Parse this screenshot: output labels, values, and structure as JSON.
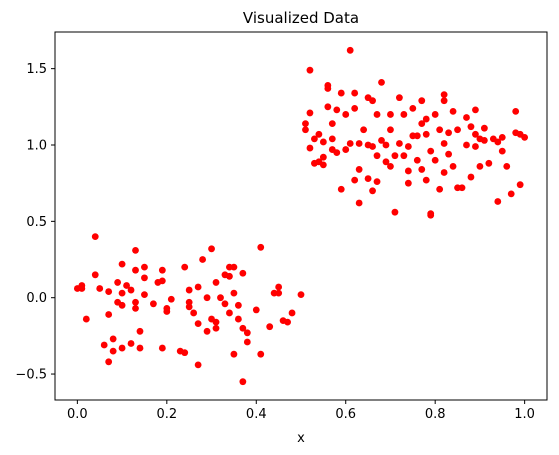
{
  "chart_data": {
    "type": "scatter",
    "title": "Visualized Data",
    "xlabel": "x",
    "ylabel": "",
    "xlim": [
      -0.05,
      1.05
    ],
    "ylim": [
      -0.67,
      1.74
    ],
    "xticks": [
      0.0,
      0.2,
      0.4,
      0.6,
      0.8,
      1.0
    ],
    "xtick_labels": [
      "0.0",
      "0.2",
      "0.4",
      "0.6",
      "0.8",
      "1.0"
    ],
    "yticks": [
      -0.5,
      0.0,
      0.5,
      1.0,
      1.5
    ],
    "ytick_labels": [
      "−0.5",
      "0.0",
      "0.5",
      "1.0",
      "1.5"
    ],
    "grid": false,
    "legend": "none",
    "marker_color": "#ff0000",
    "series": [
      {
        "points": [
          [
            0.0,
            0.06
          ],
          [
            0.01,
            0.08
          ],
          [
            0.01,
            0.06
          ],
          [
            0.02,
            -0.14
          ],
          [
            0.04,
            0.4
          ],
          [
            0.04,
            0.15
          ],
          [
            0.05,
            0.06
          ],
          [
            0.06,
            -0.31
          ],
          [
            0.07,
            0.04
          ],
          [
            0.07,
            -0.11
          ],
          [
            0.07,
            -0.42
          ],
          [
            0.08,
            -0.35
          ],
          [
            0.08,
            -0.27
          ],
          [
            0.09,
            -0.03
          ],
          [
            0.09,
            0.1
          ],
          [
            0.1,
            0.22
          ],
          [
            0.1,
            0.03
          ],
          [
            0.1,
            -0.05
          ],
          [
            0.1,
            -0.33
          ],
          [
            0.11,
            0.08
          ],
          [
            0.12,
            -0.3
          ],
          [
            0.12,
            0.05
          ],
          [
            0.13,
            -0.07
          ],
          [
            0.13,
            0.31
          ],
          [
            0.13,
            0.18
          ],
          [
            0.13,
            -0.03
          ],
          [
            0.14,
            -0.33
          ],
          [
            0.14,
            -0.22
          ],
          [
            0.15,
            0.2
          ],
          [
            0.15,
            0.02
          ],
          [
            0.15,
            0.13
          ],
          [
            0.17,
            -0.04
          ],
          [
            0.18,
            0.1
          ],
          [
            0.19,
            0.18
          ],
          [
            0.19,
            0.11
          ],
          [
            0.19,
            -0.33
          ],
          [
            0.2,
            -0.07
          ],
          [
            0.2,
            -0.09
          ],
          [
            0.21,
            -0.01
          ],
          [
            0.23,
            -0.35
          ],
          [
            0.24,
            -0.36
          ],
          [
            0.24,
            0.2
          ],
          [
            0.25,
            0.05
          ],
          [
            0.25,
            -0.03
          ],
          [
            0.25,
            -0.06
          ],
          [
            0.26,
            -0.1
          ],
          [
            0.27,
            0.07
          ],
          [
            0.27,
            -0.17
          ],
          [
            0.27,
            -0.44
          ],
          [
            0.28,
            0.25
          ],
          [
            0.29,
            -0.22
          ],
          [
            0.29,
            0.0
          ],
          [
            0.3,
            -0.14
          ],
          [
            0.3,
            0.32
          ],
          [
            0.31,
            -0.16
          ],
          [
            0.31,
            -0.2
          ],
          [
            0.31,
            0.1
          ],
          [
            0.32,
            0.0
          ],
          [
            0.33,
            0.15
          ],
          [
            0.33,
            -0.04
          ],
          [
            0.34,
            0.2
          ],
          [
            0.34,
            0.14
          ],
          [
            0.34,
            -0.1
          ],
          [
            0.35,
            0.03
          ],
          [
            0.35,
            0.2
          ],
          [
            0.35,
            -0.37
          ],
          [
            0.36,
            -0.14
          ],
          [
            0.36,
            -0.05
          ],
          [
            0.37,
            -0.55
          ],
          [
            0.37,
            0.16
          ],
          [
            0.37,
            -0.2
          ],
          [
            0.38,
            -0.23
          ],
          [
            0.38,
            -0.29
          ],
          [
            0.4,
            -0.08
          ],
          [
            0.41,
            -0.37
          ],
          [
            0.41,
            0.33
          ],
          [
            0.43,
            -0.19
          ],
          [
            0.44,
            0.03
          ],
          [
            0.45,
            0.07
          ],
          [
            0.45,
            0.03
          ],
          [
            0.46,
            -0.15
          ],
          [
            0.47,
            -0.16
          ],
          [
            0.48,
            -0.1
          ],
          [
            0.5,
            0.02
          ],
          [
            0.51,
            1.1
          ],
          [
            0.51,
            1.14
          ],
          [
            0.52,
            1.49
          ],
          [
            0.52,
            1.21
          ],
          [
            0.52,
            0.98
          ],
          [
            0.53,
            0.88
          ],
          [
            0.53,
            1.04
          ],
          [
            0.54,
            0.89
          ],
          [
            0.54,
            1.07
          ],
          [
            0.55,
            0.87
          ],
          [
            0.55,
            1.02
          ],
          [
            0.55,
            0.92
          ],
          [
            0.56,
            1.37
          ],
          [
            0.56,
            1.39
          ],
          [
            0.56,
            1.25
          ],
          [
            0.57,
            1.14
          ],
          [
            0.57,
            1.04
          ],
          [
            0.57,
            0.97
          ],
          [
            0.58,
            1.23
          ],
          [
            0.58,
            0.95
          ],
          [
            0.59,
            1.34
          ],
          [
            0.59,
            0.71
          ],
          [
            0.6,
            1.2
          ],
          [
            0.6,
            0.97
          ],
          [
            0.61,
            1.62
          ],
          [
            0.61,
            1.01
          ],
          [
            0.62,
            0.77
          ],
          [
            0.62,
            1.34
          ],
          [
            0.62,
            1.24
          ],
          [
            0.63,
            0.62
          ],
          [
            0.63,
            1.01
          ],
          [
            0.63,
            0.84
          ],
          [
            0.64,
            1.1
          ],
          [
            0.65,
            1.31
          ],
          [
            0.65,
            1.0
          ],
          [
            0.65,
            0.78
          ],
          [
            0.66,
            1.29
          ],
          [
            0.66,
            0.99
          ],
          [
            0.66,
            0.7
          ],
          [
            0.67,
            0.93
          ],
          [
            0.67,
            0.76
          ],
          [
            0.67,
            1.2
          ],
          [
            0.68,
            1.03
          ],
          [
            0.68,
            1.41
          ],
          [
            0.69,
            0.89
          ],
          [
            0.69,
            1.0
          ],
          [
            0.7,
            1.2
          ],
          [
            0.7,
            0.86
          ],
          [
            0.7,
            1.1
          ],
          [
            0.71,
            0.56
          ],
          [
            0.71,
            0.93
          ],
          [
            0.72,
            1.31
          ],
          [
            0.72,
            1.01
          ],
          [
            0.73,
            1.2
          ],
          [
            0.73,
            0.93
          ],
          [
            0.74,
            0.99
          ],
          [
            0.74,
            0.75
          ],
          [
            0.74,
            0.83
          ],
          [
            0.75,
            1.06
          ],
          [
            0.75,
            1.24
          ],
          [
            0.76,
            0.9
          ],
          [
            0.76,
            1.06
          ],
          [
            0.77,
            1.29
          ],
          [
            0.77,
            1.14
          ],
          [
            0.77,
            0.84
          ],
          [
            0.78,
            0.77
          ],
          [
            0.78,
            1.17
          ],
          [
            0.78,
            1.07
          ],
          [
            0.79,
            0.54
          ],
          [
            0.79,
            0.96
          ],
          [
            0.79,
            0.55
          ],
          [
            0.8,
            0.9
          ],
          [
            0.8,
            1.2
          ],
          [
            0.81,
            1.1
          ],
          [
            0.81,
            0.71
          ],
          [
            0.82,
            1.33
          ],
          [
            0.82,
            1.29
          ],
          [
            0.82,
            0.82
          ],
          [
            0.82,
            1.01
          ],
          [
            0.83,
            1.08
          ],
          [
            0.83,
            0.94
          ],
          [
            0.84,
            1.22
          ],
          [
            0.84,
            0.86
          ],
          [
            0.85,
            0.72
          ],
          [
            0.85,
            1.1
          ],
          [
            0.86,
            0.72
          ],
          [
            0.87,
            1.18
          ],
          [
            0.87,
            1.0
          ],
          [
            0.88,
            0.79
          ],
          [
            0.88,
            1.12
          ],
          [
            0.89,
            1.07
          ],
          [
            0.89,
            1.23
          ],
          [
            0.89,
            0.99
          ],
          [
            0.9,
            1.04
          ],
          [
            0.9,
            0.86
          ],
          [
            0.91,
            1.11
          ],
          [
            0.91,
            1.03
          ],
          [
            0.92,
            0.88
          ],
          [
            0.93,
            1.04
          ],
          [
            0.94,
            1.02
          ],
          [
            0.94,
            0.63
          ],
          [
            0.95,
            1.05
          ],
          [
            0.95,
            0.96
          ],
          [
            0.96,
            0.86
          ],
          [
            0.97,
            0.68
          ],
          [
            0.98,
            1.22
          ],
          [
            0.98,
            1.08
          ],
          [
            0.99,
            1.07
          ],
          [
            0.99,
            0.74
          ],
          [
            1.0,
            1.05
          ]
        ]
      }
    ]
  }
}
